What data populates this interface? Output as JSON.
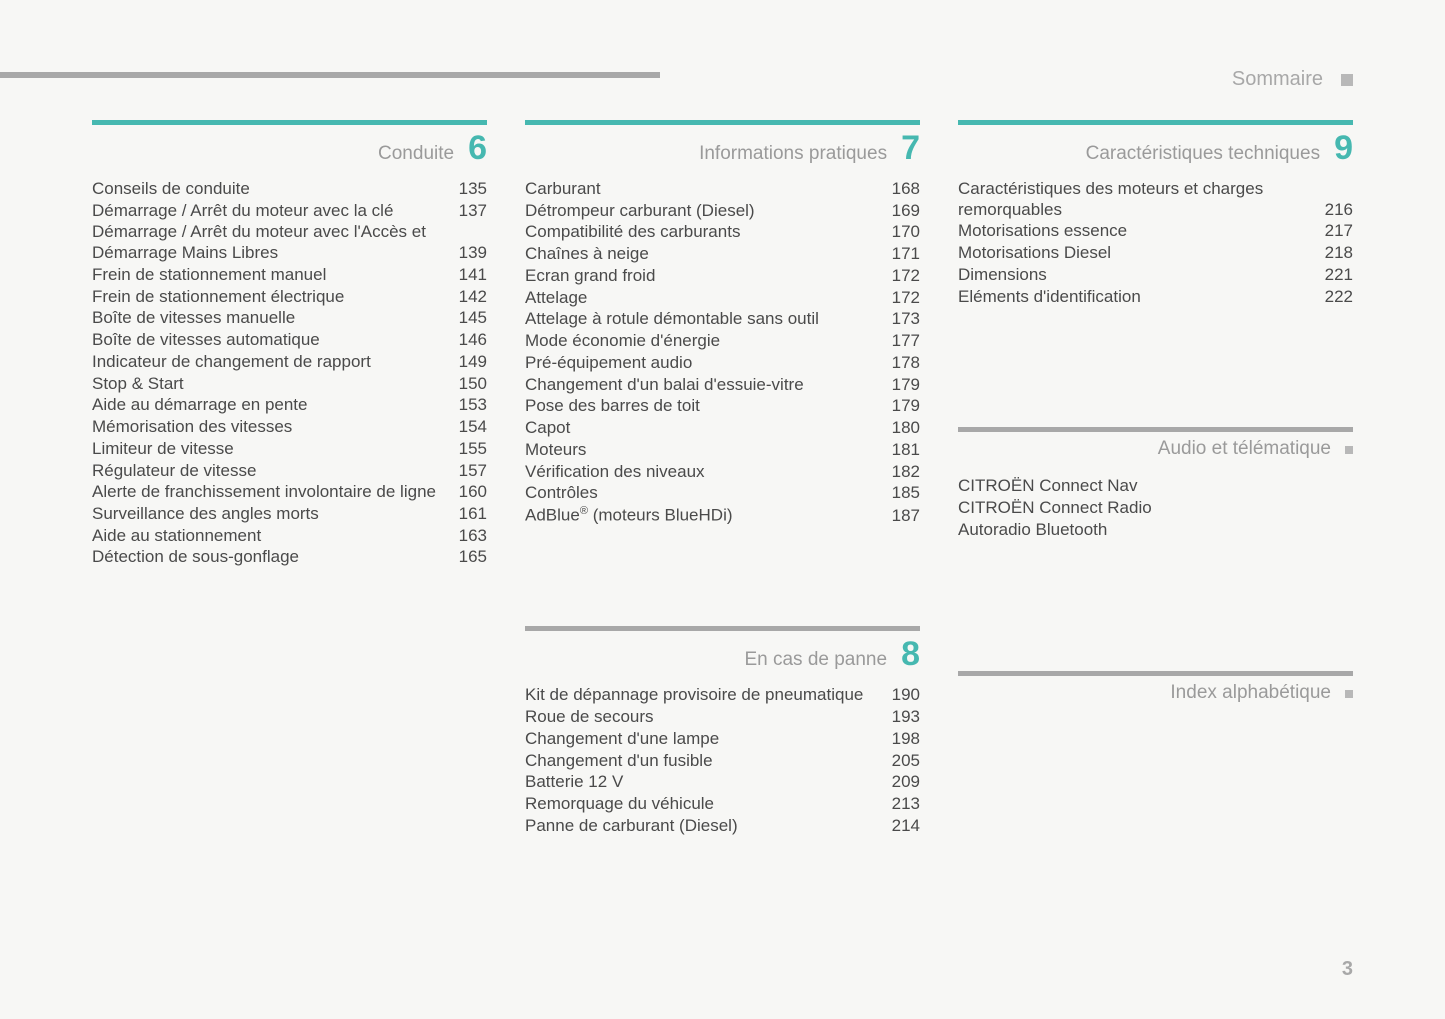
{
  "page": {
    "header_title": "Sommaire",
    "page_number": "3",
    "colors": {
      "teal": "#46b8b0",
      "gray_line": "#a8a8a8",
      "text": "#4a4a4a",
      "muted": "#9a9a9a",
      "bg": "#f7f7f5"
    }
  },
  "sections": [
    {
      "id": "s6",
      "title": "Conduite",
      "number": "6",
      "number_color": "#46b8b0",
      "border_color": "#46b8b0",
      "column": 0,
      "items": [
        {
          "label": "Conseils de conduite",
          "page": "135"
        },
        {
          "label": "Démarrage / Arrêt du moteur avec la clé",
          "page": "137"
        },
        {
          "label": "Démarrage / Arrêt du moteur avec l'Accès et Démarrage Mains Libres",
          "page": "139"
        },
        {
          "label": "Frein de stationnement manuel",
          "page": "141"
        },
        {
          "label": "Frein de stationnement électrique",
          "page": "142"
        },
        {
          "label": "Boîte de vitesses manuelle",
          "page": "145"
        },
        {
          "label": "Boîte de vitesses automatique",
          "page": "146"
        },
        {
          "label": "Indicateur de changement de rapport",
          "page": "149"
        },
        {
          "label": "Stop & Start",
          "page": "150"
        },
        {
          "label": "Aide au démarrage en pente",
          "page": "153"
        },
        {
          "label": "Mémorisation des vitesses",
          "page": "154"
        },
        {
          "label": "Limiteur de vitesse",
          "page": "155"
        },
        {
          "label": "Régulateur de vitesse",
          "page": "157"
        },
        {
          "label": "Alerte de franchissement involontaire de ligne",
          "page": "160"
        },
        {
          "label": "Surveillance des angles morts",
          "page": "161"
        },
        {
          "label": "Aide au stationnement",
          "page": "163"
        },
        {
          "label": "Détection de sous-gonflage",
          "page": "165"
        }
      ]
    },
    {
      "id": "s7",
      "title": "Informations pratiques",
      "number": "7",
      "number_color": "#46b8b0",
      "border_color": "#46b8b0",
      "column": 1,
      "items": [
        {
          "label": "Carburant",
          "page": "168"
        },
        {
          "label": "Détrompeur carburant (Diesel)",
          "page": "169"
        },
        {
          "label": "Compatibilité des carburants",
          "page": "170"
        },
        {
          "label": "Chaînes à neige",
          "page": "171"
        },
        {
          "label": "Ecran grand froid",
          "page": "172"
        },
        {
          "label": "Attelage",
          "page": "172"
        },
        {
          "label": "Attelage à rotule démontable sans outil",
          "page": "173"
        },
        {
          "label": "Mode économie d'énergie",
          "page": "177"
        },
        {
          "label": "Pré-équipement audio",
          "page": "178"
        },
        {
          "label": "Changement d'un balai d'essuie-vitre",
          "page": "179"
        },
        {
          "label": "Pose des barres de toit",
          "page": "179"
        },
        {
          "label": "Capot",
          "page": "180"
        },
        {
          "label": "Moteurs",
          "page": "181"
        },
        {
          "label": "Vérification des niveaux",
          "page": "182"
        },
        {
          "label": "Contrôles",
          "page": "185"
        },
        {
          "label": "AdBlue® (moteurs BlueHDi)",
          "page": "187",
          "has_sup": true
        }
      ]
    },
    {
      "id": "s8",
      "title": "En cas de panne",
      "number": "8",
      "number_color": "#46b8b0",
      "border_color": "#a8a8a8",
      "column": 1,
      "items": [
        {
          "label": "Kit de dépannage provisoire de pneumatique",
          "page": "190"
        },
        {
          "label": "Roue de secours",
          "page": "193"
        },
        {
          "label": "Changement d'une lampe",
          "page": "198"
        },
        {
          "label": "Changement d'un fusible",
          "page": "205"
        },
        {
          "label": "Batterie 12 V",
          "page": "209"
        },
        {
          "label": "Remorquage du véhicule",
          "page": "213"
        },
        {
          "label": "Panne de carburant (Diesel)",
          "page": "214"
        }
      ]
    },
    {
      "id": "s9",
      "title": "Caractéristiques techniques",
      "number": "9",
      "number_color": "#46b8b0",
      "border_color": "#46b8b0",
      "column": 2,
      "items": [
        {
          "label": "Caractéristiques des moteurs et charges remorquables",
          "page": "216"
        },
        {
          "label": "Motorisations essence",
          "page": "217"
        },
        {
          "label": "Motorisations Diesel",
          "page": "218"
        },
        {
          "label": "Dimensions",
          "page": "221"
        },
        {
          "label": "Eléments d'identification",
          "page": "222"
        }
      ]
    },
    {
      "id": "s_audio",
      "title": "Audio et télématique",
      "number": "",
      "number_color": "#b8b8b8",
      "border_color": "#a8a8a8",
      "column": 2,
      "dot": true,
      "items": [
        {
          "label": "CITROËN Connect Nav",
          "page": ""
        },
        {
          "label": "CITROËN Connect Radio",
          "page": ""
        },
        {
          "label": "Autoradio Bluetooth",
          "page": ""
        }
      ]
    },
    {
      "id": "s_index",
      "title": "Index alphabétique",
      "number": "",
      "number_color": "#b8b8b8",
      "border_color": "#a8a8a8",
      "column": 2,
      "dot": true,
      "items": []
    }
  ]
}
